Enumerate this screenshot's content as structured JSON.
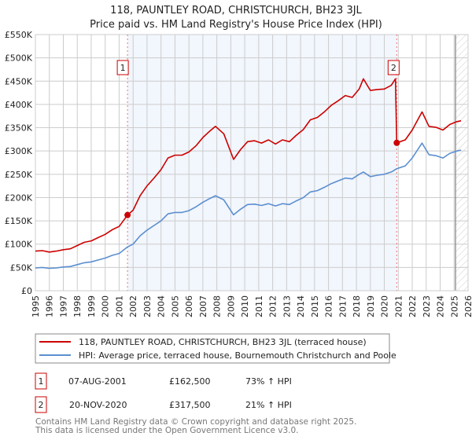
{
  "chart_data": {
    "type": "line",
    "title": "118, PAUNTLEY ROAD, CHRISTCHURCH, BH23 3JL",
    "subtitle": "Price paid vs. HM Land Registry's House Price Index (HPI)",
    "xlim": [
      1995,
      2026
    ],
    "ylim": [
      0,
      550000
    ],
    "x_ticks": [
      1995,
      1996,
      1997,
      1998,
      1999,
      2000,
      2001,
      2002,
      2003,
      2004,
      2005,
      2006,
      2007,
      2008,
      2009,
      2010,
      2011,
      2012,
      2013,
      2014,
      2015,
      2016,
      2017,
      2018,
      2019,
      2020,
      2021,
      2022,
      2023,
      2024,
      2025,
      2026
    ],
    "y_ticks": [
      0,
      50000,
      100000,
      150000,
      200000,
      250000,
      300000,
      350000,
      400000,
      450000,
      500000,
      550000
    ],
    "y_tick_labels": [
      "£0",
      "£50K",
      "£100K",
      "£150K",
      "£200K",
      "£250K",
      "£300K",
      "£350K",
      "£400K",
      "£450K",
      "£500K",
      "£550K"
    ],
    "grid": true,
    "shaded_range": [
      2001.6,
      2020.89
    ],
    "hatched_from": 2025.1,
    "series": [
      {
        "name": "118, PAUNTLEY ROAD, CHRISTCHURCH, BH23 3JL (terraced house)",
        "color": "#cc0000",
        "x": [
          1995,
          1995.5,
          1996,
          1996.5,
          1997,
          1997.5,
          1998,
          1998.5,
          1999,
          1999.5,
          2000,
          2000.5,
          2001,
          2001.6,
          2002,
          2002.5,
          2003,
          2003.5,
          2004,
          2004.5,
          2005,
          2005.5,
          2006,
          2006.5,
          2007,
          2007.5,
          2007.9,
          2008.5,
          2009.2,
          2009.7,
          2010.2,
          2010.7,
          2011.2,
          2011.7,
          2012.2,
          2012.7,
          2013.2,
          2013.7,
          2014.2,
          2014.7,
          2015.2,
          2015.7,
          2016.2,
          2016.7,
          2017.2,
          2017.7,
          2018.2,
          2018.5,
          2019,
          2019.5,
          2020,
          2020.5,
          2020.8,
          2020.89,
          2021.5,
          2022,
          2022.7,
          2023.2,
          2023.7,
          2024.2,
          2024.7,
          2025.2,
          2025.5
        ],
        "y": [
          85000,
          86000,
          83000,
          85000,
          88000,
          90000,
          97000,
          104000,
          107000,
          114000,
          121000,
          131000,
          138000,
          162500,
          173000,
          204000,
          225000,
          242000,
          260000,
          285000,
          291000,
          291000,
          298000,
          311000,
          329000,
          343000,
          353000,
          337000,
          282000,
          303000,
          320000,
          322000,
          317000,
          324000,
          315000,
          324000,
          320000,
          334000,
          346000,
          367000,
          372000,
          384000,
          398000,
          408000,
          419000,
          415000,
          433000,
          455000,
          430000,
          432000,
          433000,
          441000,
          455000,
          317500,
          324000,
          345000,
          384000,
          353000,
          351000,
          345000,
          357000,
          363000,
          365000
        ]
      },
      {
        "name": "HPI: Average price, terraced house, Bournemouth Christchurch and Poole",
        "color": "#5b8fd0",
        "x": [
          1995,
          1995.5,
          1996,
          1996.5,
          1997,
          1997.5,
          1998,
          1998.5,
          1999,
          1999.5,
          2000,
          2000.5,
          2001,
          2001.6,
          2002,
          2002.5,
          2003,
          2003.5,
          2004,
          2004.5,
          2005,
          2005.5,
          2006,
          2006.5,
          2007,
          2007.5,
          2007.9,
          2008.5,
          2009.2,
          2009.7,
          2010.2,
          2010.7,
          2011.2,
          2011.7,
          2012.2,
          2012.7,
          2013.2,
          2013.7,
          2014.2,
          2014.7,
          2015.2,
          2015.7,
          2016.2,
          2016.7,
          2017.2,
          2017.7,
          2018.2,
          2018.5,
          2019,
          2019.5,
          2020,
          2020.5,
          2020.89,
          2021.5,
          2022,
          2022.7,
          2023.2,
          2023.7,
          2024.2,
          2024.7,
          2025.2,
          2025.5
        ],
        "y": [
          49000,
          50000,
          48000,
          49000,
          51000,
          52000,
          56000,
          60000,
          62000,
          66000,
          70000,
          76000,
          80000,
          94000,
          100000,
          118000,
          130000,
          140000,
          150000,
          165000,
          168000,
          168000,
          172000,
          180000,
          190000,
          198000,
          204000,
          195000,
          163000,
          175000,
          185000,
          186000,
          183000,
          187000,
          182000,
          187000,
          185000,
          193000,
          200000,
          212000,
          215000,
          222000,
          230000,
          236000,
          242000,
          240000,
          250000,
          255000,
          245000,
          248000,
          250000,
          255000,
          262000,
          268000,
          285000,
          317000,
          292000,
          290000,
          285000,
          295000,
          300000,
          302000
        ]
      }
    ],
    "sales": [
      {
        "label": "1",
        "x": 2001.6,
        "y": 162500,
        "date": "07-AUG-2001",
        "price": "£162,500",
        "hpi": "73% ↑ HPI"
      },
      {
        "label": "2",
        "x": 2020.89,
        "y": 317500,
        "date": "20-NOV-2020",
        "price": "£317,500",
        "hpi": "21% ↑ HPI"
      }
    ]
  },
  "footer": {
    "line1": "Contains HM Land Registry data © Crown copyright and database right 2025.",
    "line2": "This data is licensed under the Open Government Licence v3.0."
  }
}
